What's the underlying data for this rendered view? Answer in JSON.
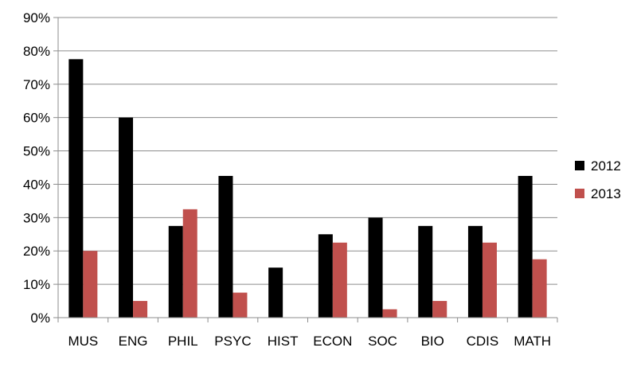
{
  "chart_data": {
    "type": "bar",
    "categories": [
      "MUS",
      "ENG",
      "PHIL",
      "PSYC",
      "HIST",
      "ECON",
      "SOC",
      "BIO",
      "CDIS",
      "MATH"
    ],
    "series": [
      {
        "name": "2012",
        "color": "#000000",
        "values": [
          77.5,
          60,
          27.5,
          42.5,
          15,
          25,
          30,
          27.5,
          27.5,
          42.5
        ]
      },
      {
        "name": "2013",
        "color": "#c0504d",
        "values": [
          20,
          5,
          32.5,
          7.5,
          0,
          22.5,
          2.5,
          5,
          22.5,
          17.5
        ]
      }
    ],
    "y_ticks": [
      "0%",
      "10%",
      "20%",
      "30%",
      "40%",
      "50%",
      "60%",
      "70%",
      "80%",
      "90%"
    ],
    "ylim": [
      0,
      90
    ],
    "grid": true,
    "legend_position": "right"
  }
}
